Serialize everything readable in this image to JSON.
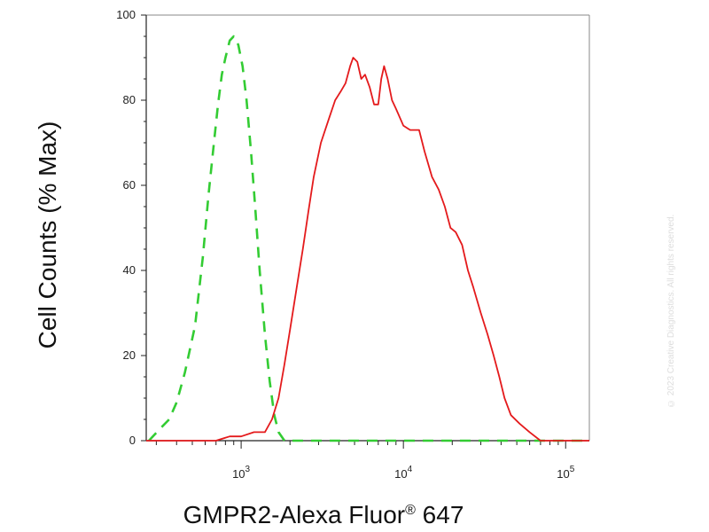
{
  "chart_data": {
    "type": "line",
    "title": "",
    "ylabel": "Cell Counts (% Max)",
    "xlabel_main": "GMPR2-Alexa Fluor",
    "xlabel_sup": "®",
    "xlabel_tail": " 647",
    "x_scale": "log",
    "xlim": [
      260,
      140000
    ],
    "ylim": [
      0,
      100
    ],
    "y_ticks": [
      0,
      20,
      40,
      60,
      80,
      100
    ],
    "y_tick_labels": [
      "0",
      "20",
      "40",
      "60",
      "80",
      "100"
    ],
    "x_ticks": [
      1000,
      10000,
      100000
    ],
    "x_tick_labels": [
      {
        "base": "10",
        "exp": "3"
      },
      {
        "base": "10",
        "exp": "4"
      },
      {
        "base": "10",
        "exp": "5"
      }
    ],
    "grid": false,
    "series": [
      {
        "color": "#33cc33",
        "dash": "dashed",
        "points": [
          [
            270,
            0
          ],
          [
            320,
            3
          ],
          [
            360,
            5
          ],
          [
            400,
            9
          ],
          [
            450,
            16
          ],
          [
            520,
            27
          ],
          [
            580,
            43
          ],
          [
            630,
            58
          ],
          [
            680,
            70
          ],
          [
            720,
            79
          ],
          [
            760,
            86
          ],
          [
            800,
            90
          ],
          [
            850,
            94
          ],
          [
            900,
            95
          ],
          [
            960,
            93
          ],
          [
            1020,
            88
          ],
          [
            1080,
            80
          ],
          [
            1150,
            68
          ],
          [
            1220,
            55
          ],
          [
            1300,
            40
          ],
          [
            1400,
            25
          ],
          [
            1500,
            14
          ],
          [
            1600,
            6
          ],
          [
            1700,
            2
          ],
          [
            1850,
            0
          ],
          [
            2200,
            0
          ],
          [
            3000,
            0
          ],
          [
            5000,
            0
          ],
          [
            10000,
            0
          ],
          [
            30000,
            0
          ],
          [
            70000,
            0
          ],
          [
            140000,
            0
          ]
        ]
      },
      {
        "color": "#e41a1c",
        "dash": "solid",
        "points": [
          [
            260,
            0
          ],
          [
            700,
            0
          ],
          [
            850,
            1
          ],
          [
            1000,
            1
          ],
          [
            1200,
            2
          ],
          [
            1400,
            2
          ],
          [
            1550,
            5
          ],
          [
            1700,
            10
          ],
          [
            1850,
            18
          ],
          [
            2000,
            26
          ],
          [
            2200,
            36
          ],
          [
            2400,
            45
          ],
          [
            2600,
            54
          ],
          [
            2800,
            62
          ],
          [
            3100,
            70
          ],
          [
            3500,
            76
          ],
          [
            3800,
            80
          ],
          [
            4100,
            82
          ],
          [
            4400,
            84
          ],
          [
            4700,
            88
          ],
          [
            4900,
            90
          ],
          [
            5200,
            89
          ],
          [
            5500,
            85
          ],
          [
            5800,
            86
          ],
          [
            6200,
            83
          ],
          [
            6600,
            79
          ],
          [
            7000,
            79
          ],
          [
            7300,
            85
          ],
          [
            7600,
            88
          ],
          [
            8000,
            85
          ],
          [
            8500,
            80
          ],
          [
            9000,
            78
          ],
          [
            10000,
            74
          ],
          [
            11000,
            73
          ],
          [
            12500,
            73
          ],
          [
            13500,
            68
          ],
          [
            15000,
            62
          ],
          [
            16500,
            59
          ],
          [
            18000,
            55
          ],
          [
            19500,
            50
          ],
          [
            21000,
            49
          ],
          [
            23000,
            46
          ],
          [
            25000,
            40
          ],
          [
            27000,
            36
          ],
          [
            30000,
            30
          ],
          [
            33000,
            25
          ],
          [
            36000,
            20
          ],
          [
            39000,
            15
          ],
          [
            42000,
            10
          ],
          [
            46000,
            6
          ],
          [
            52000,
            4
          ],
          [
            60000,
            2
          ],
          [
            70000,
            0
          ],
          [
            90000,
            0
          ],
          [
            140000,
            0
          ]
        ]
      }
    ],
    "watermark": "© 2023 Creative Diagnostics. All rights reserved."
  }
}
